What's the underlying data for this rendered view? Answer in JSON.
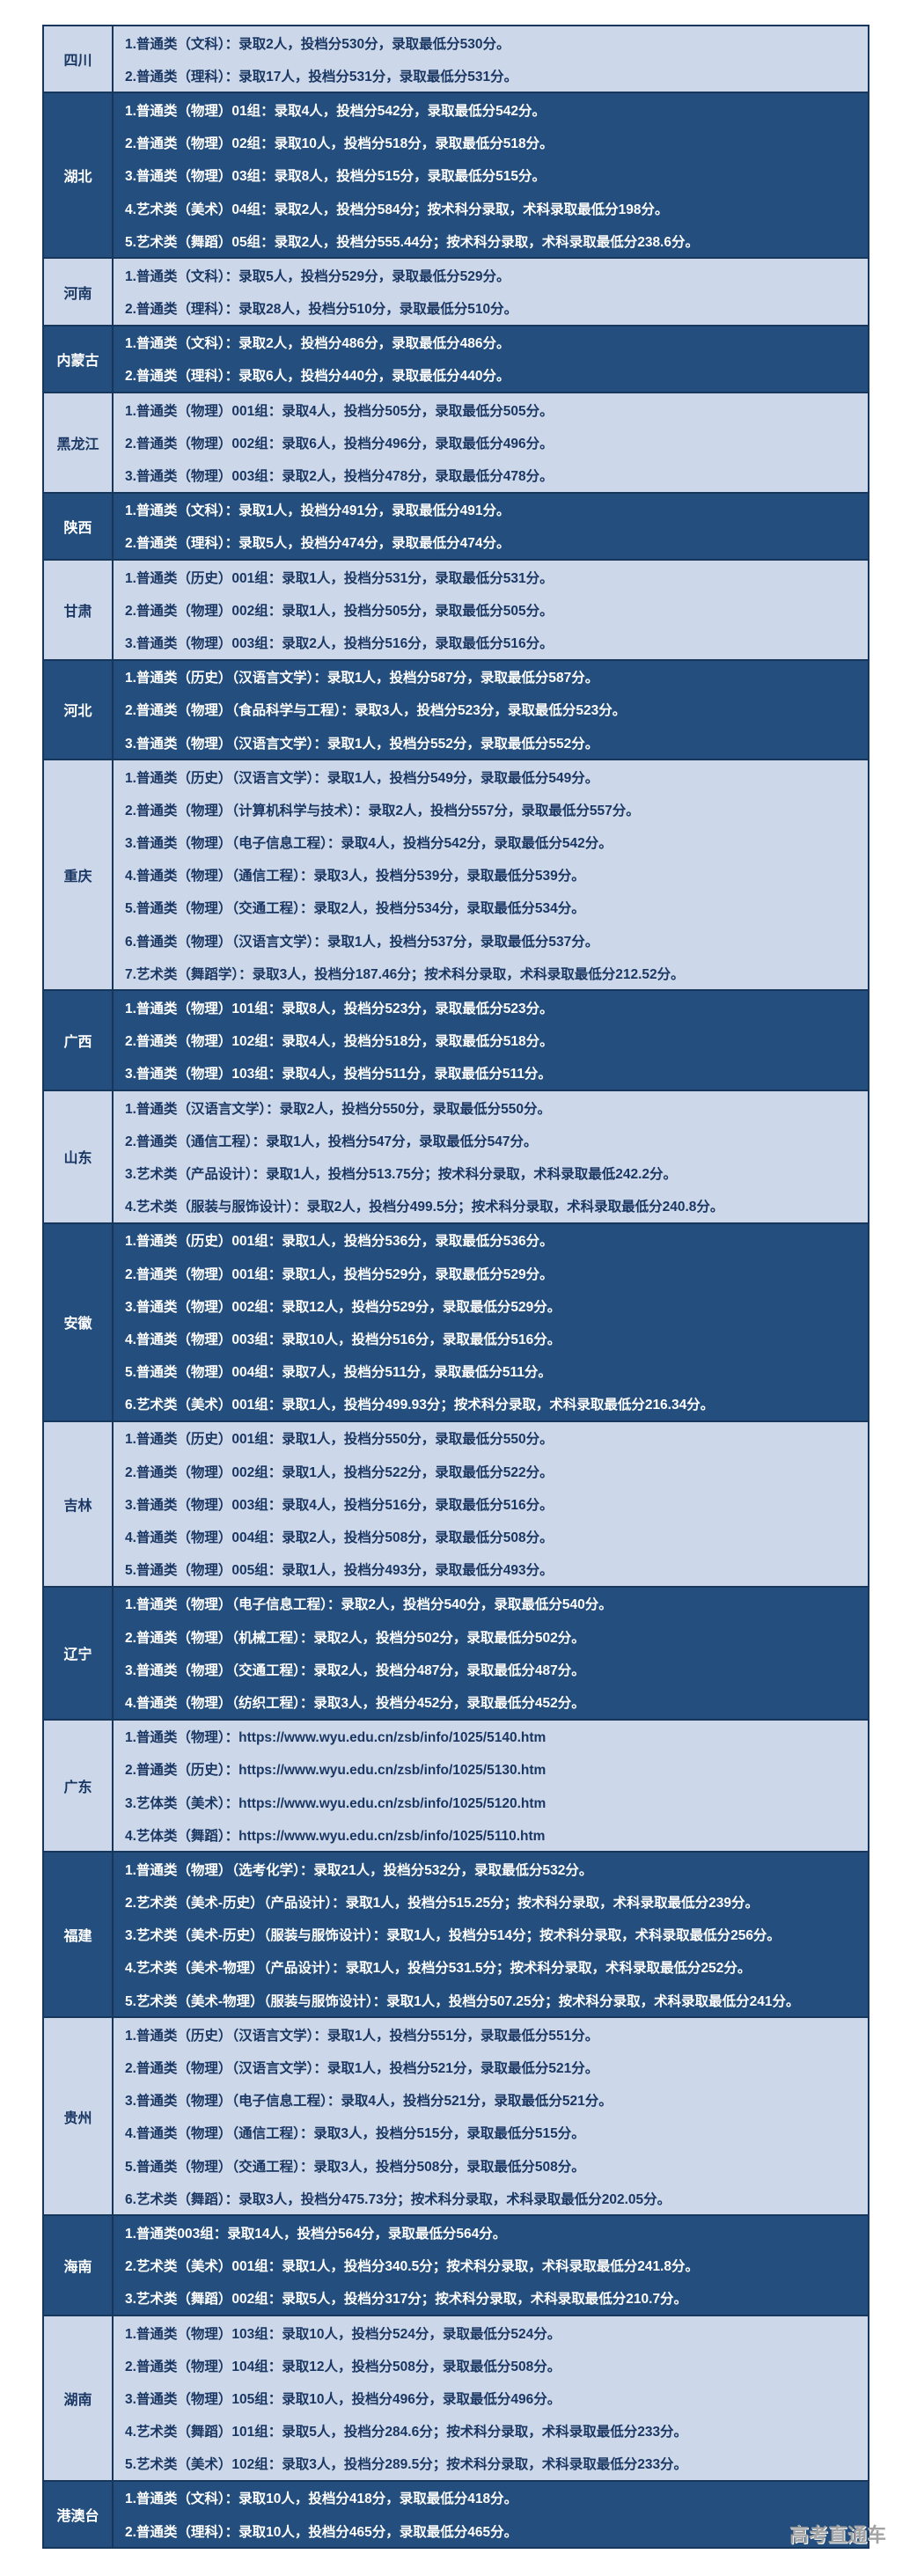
{
  "watermark": {
    "text": "高考直通车"
  },
  "colors": {
    "dark_row_bg": "#234e7d",
    "light_row_bg": "#ccd8e9",
    "border": "#16365c",
    "light_row_text": "#1a3763",
    "dark_row_text": "#ffffff",
    "watermark_text": "#a3a3a3"
  },
  "table": {
    "provinces": [
      {
        "name": "四川",
        "lines": [
          "1.普通类（文科）：录取2人，投档分530分，录取最低分530分。",
          "2.普通类（理科）：录取17人，投档分531分，录取最低分531分。"
        ]
      },
      {
        "name": "湖北",
        "lines": [
          "1.普通类（物理）01组：录取4人，投档分542分，录取最低分542分。",
          "2.普通类（物理）02组：录取10人，投档分518分，录取最低分518分。",
          "3.普通类（物理）03组：录取8人，投档分515分，录取最低分515分。",
          "4.艺术类（美术）04组：录取2人，投档分584分；按术科分录取，术科录取最低分198分。",
          "5.艺术类（舞蹈）05组：录取2人，投档分555.44分；按术科分录取，术科录取最低分238.6分。"
        ]
      },
      {
        "name": "河南",
        "lines": [
          "1.普通类（文科）：录取5人，投档分529分，录取最低分529分。",
          "2.普通类（理科）：录取28人，投档分510分，录取最低分510分。"
        ]
      },
      {
        "name": "内蒙古",
        "lines": [
          "1.普通类（文科）：录取2人，投档分486分，录取最低分486分。",
          "2.普通类（理科）：录取6人，投档分440分，录取最低分440分。"
        ]
      },
      {
        "name": "黑龙江",
        "lines": [
          "1.普通类（物理）001组：录取4人，投档分505分，录取最低分505分。",
          "2.普通类（物理）002组：录取6人，投档分496分，录取最低分496分。",
          "3.普通类（物理）003组：录取2人，投档分478分，录取最低分478分。"
        ]
      },
      {
        "name": "陕西",
        "lines": [
          "1.普通类（文科）：录取1人，投档分491分，录取最低分491分。",
          "2.普通类（理科）：录取5人，投档分474分，录取最低分474分。"
        ]
      },
      {
        "name": "甘肃",
        "lines": [
          "1.普通类（历史）001组：录取1人，投档分531分，录取最低分531分。",
          "2.普通类（物理）002组：录取1人，投档分505分，录取最低分505分。",
          "3.普通类（物理）003组：录取2人，投档分516分，录取最低分516分。"
        ]
      },
      {
        "name": "河北",
        "lines": [
          "1.普通类（历史）（汉语言文学）：录取1人，投档分587分，录取最低分587分。",
          "2.普通类（物理）（食品科学与工程）：录取3人，投档分523分，录取最低分523分。",
          "3.普通类（物理）（汉语言文学）：录取1人，投档分552分，录取最低分552分。"
        ]
      },
      {
        "name": "重庆",
        "lines": [
          "1.普通类（历史）（汉语言文学）：录取1人，投档分549分，录取最低分549分。",
          "2.普通类（物理）（计算机科学与技术）：录取2人，投档分557分，录取最低分557分。",
          "3.普通类（物理）（电子信息工程）：录取4人，投档分542分，录取最低分542分。",
          "4.普通类（物理）（通信工程）：录取3人，投档分539分，录取最低分539分。",
          "5.普通类（物理）（交通工程）：录取2人，投档分534分，录取最低分534分。",
          "6.普通类（物理）（汉语言文学）：录取1人，投档分537分，录取最低分537分。",
          "7.艺术类（舞蹈学）：录取3人，投档分187.46分；按术科分录取，术科录取最低分212.52分。"
        ]
      },
      {
        "name": "广西",
        "lines": [
          "1.普通类（物理）101组：录取8人，投档分523分，录取最低分523分。",
          "2.普通类（物理）102组：录取4人，投档分518分，录取最低分518分。",
          "3.普通类（物理）103组：录取4人，投档分511分，录取最低分511分。"
        ]
      },
      {
        "name": "山东",
        "lines": [
          "1.普通类（汉语言文学）：录取2人，投档分550分，录取最低分550分。",
          "2.普通类（通信工程）：录取1人，投档分547分，录取最低分547分。",
          "3.艺术类（产品设计）：录取1人，投档分513.75分；按术科分录取，术科录取最低242.2分。",
          "4.艺术类（服装与服饰设计）：录取2人，投档分499.5分；按术科分录取，术科录取最低分240.8分。"
        ]
      },
      {
        "name": "安徽",
        "lines": [
          "1.普通类（历史）001组：录取1人，投档分536分，录取最低分536分。",
          "2.普通类（物理）001组：录取1人，投档分529分，录取最低分529分。",
          "3.普通类（物理）002组：录取12人，投档分529分，录取最低分529分。",
          "4.普通类（物理）003组：录取10人，投档分516分，录取最低分516分。",
          "5.普通类（物理）004组：录取7人，投档分511分，录取最低分511分。",
          "6.艺术类（美术）001组：录取1人，投档分499.93分；按术科分录取，术科录取最低分216.34分。"
        ]
      },
      {
        "name": "吉林",
        "lines": [
          "1.普通类（历史）001组：录取1人，投档分550分，录取最低分550分。",
          "2.普通类（物理）002组：录取1人，投档分522分，录取最低分522分。",
          "3.普通类（物理）003组：录取4人，投档分516分，录取最低分516分。",
          "4.普通类（物理）004组：录取2人，投档分508分，录取最低分508分。",
          "5.普通类（物理）005组：录取1人，投档分493分，录取最低分493分。"
        ]
      },
      {
        "name": "辽宁",
        "lines": [
          "1.普通类（物理）（电子信息工程）：录取2人，投档分540分，录取最低分540分。",
          "2.普通类（物理）（机械工程）：录取2人，投档分502分，录取最低分502分。",
          "3.普通类（物理）（交通工程）：录取2人，投档分487分，录取最低分487分。",
          "4.普通类（物理）（纺织工程）：录取3人，投档分452分，录取最低分452分。"
        ]
      },
      {
        "name": "广东",
        "lines": [
          "1.普通类（物理）：https://www.wyu.edu.cn/zsb/info/1025/5140.htm",
          "2.普通类（历史）：https://www.wyu.edu.cn/zsb/info/1025/5130.htm",
          "3.艺体类（美术）：https://www.wyu.edu.cn/zsb/info/1025/5120.htm",
          "4.艺体类（舞蹈）：https://www.wyu.edu.cn/zsb/info/1025/5110.htm"
        ]
      },
      {
        "name": "福建",
        "lines": [
          "1.普通类（物理）（选考化学）：录取21人，投档分532分，录取最低分532分。",
          "2.艺术类（美术-历史）（产品设计）：录取1人，投档分515.25分；按术科分录取，术科录取最低分239分。",
          "3.艺术类（美术-历史）（服装与服饰设计）：录取1人，投档分514分；按术科分录取，术科录取最低分256分。",
          "4.艺术类（美术-物理）（产品设计）：录取1人，投档分531.5分；按术科分录取，术科录取最低分252分。",
          "5.艺术类（美术-物理）（服装与服饰设计）：录取1人，投档分507.25分；按术科分录取，术科录取最低分241分。"
        ]
      },
      {
        "name": "贵州",
        "lines": [
          "1.普通类（历史）（汉语言文学）：录取1人，投档分551分，录取最低分551分。",
          "2.普通类（物理）（汉语言文学）：录取1人，投档分521分，录取最低分521分。",
          "3.普通类（物理）（电子信息工程）：录取4人，投档分521分，录取最低分521分。",
          "4.普通类（物理）（通信工程）：录取3人，投档分515分，录取最低分515分。",
          "5.普通类（物理）（交通工程）：录取3人，投档分508分，录取最低分508分。",
          "6.艺术类（舞蹈）：录取3人，投档分475.73分；按术科分录取，术科录取最低分202.05分。"
        ]
      },
      {
        "name": "海南",
        "lines": [
          "1.普通类003组：录取14人，投档分564分，录取最低分564分。",
          "2.艺术类（美术）001组：录取1人，投档分340.5分；按术科分录取，术科录取最低分241.8分。",
          "3.艺术类（舞蹈）002组：录取5人，投档分317分；按术科分录取，术科录取最低分210.7分。"
        ]
      },
      {
        "name": "湖南",
        "lines": [
          "1.普通类（物理）103组：录取10人，投档分524分，录取最低分524分。",
          "2.普通类（物理）104组：录取12人，投档分508分，录取最低分508分。",
          "3.普通类（物理）105组：录取10人，投档分496分，录取最低分496分。",
          "4.艺术类（舞蹈）101组：录取5人，投档分284.6分；按术科分录取，术科录取最低分233分。",
          "5.艺术类（美术）102组：录取3人，投档分289.5分；按术科分录取，术科录取最低分233分。"
        ]
      },
      {
        "name": "港澳台",
        "lines": [
          "1.普通类（文科）：录取10人，投档分418分，录取最低分418分。",
          "2.普通类（理科）：录取10人，投档分465分，录取最低分465分。"
        ]
      }
    ]
  }
}
